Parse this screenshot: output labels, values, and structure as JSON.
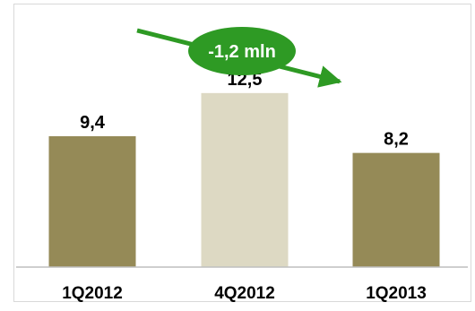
{
  "chart_data": {
    "type": "bar",
    "categories": [
      "1Q2012",
      "4Q2012",
      "1Q2013"
    ],
    "values": [
      9.4,
      12.5,
      8.2
    ],
    "value_labels": [
      "9,4",
      "12,5",
      "8,2"
    ],
    "bar_colors": [
      "#958a57",
      "#ddd9c3",
      "#958a57"
    ],
    "ylim": [
      0,
      15
    ],
    "grid": false,
    "legend": "none",
    "annotation": {
      "text": "-1,2 mln",
      "from_category": "1Q2012",
      "to_category": "1Q2013",
      "arrow_color": "#2e9a24",
      "bubble_color": "#2e9a24",
      "text_color": "#ffffff"
    }
  },
  "colors": {
    "frame": "#d9d9d9",
    "baseline": "#bfbfbf",
    "text": "#000000"
  }
}
